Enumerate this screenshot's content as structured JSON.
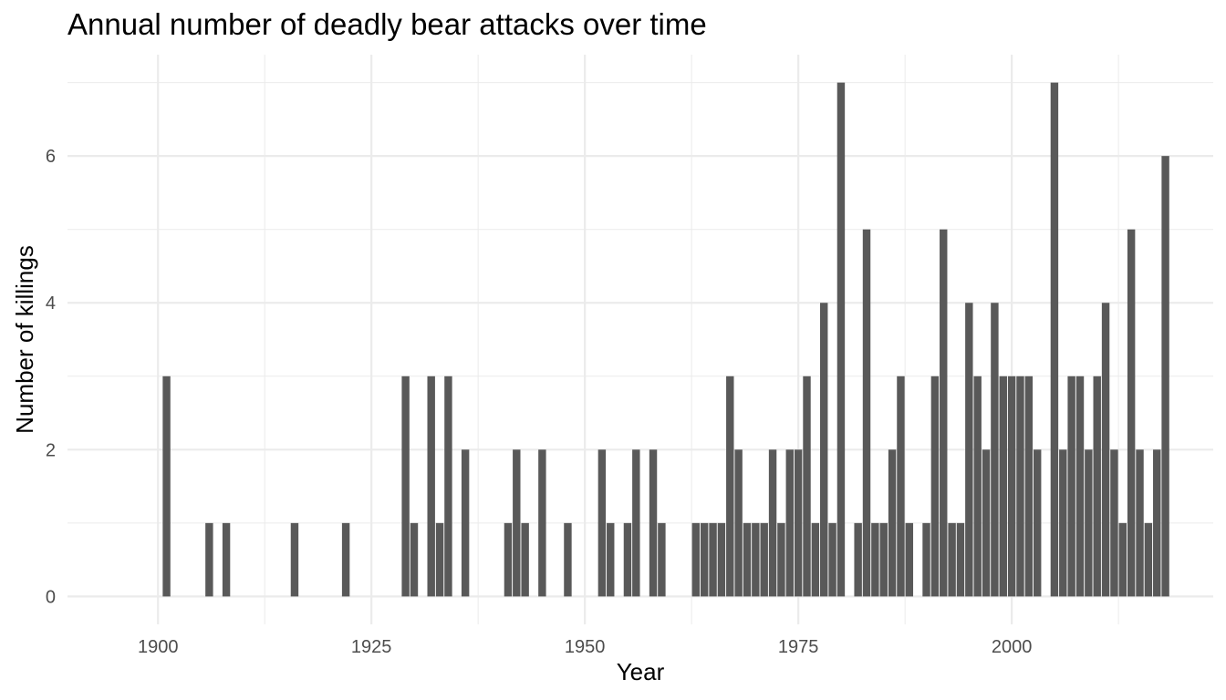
{
  "chart_data": {
    "type": "bar",
    "title": "Annual number of deadly bear attacks over time",
    "xlabel": "Year",
    "ylabel": "Number of killings",
    "xlim": [
      1889.4,
      2023.6
    ],
    "ylim": [
      -0.38,
      7.38
    ],
    "x_ticks": [
      1900,
      1925,
      1950,
      1975,
      2000
    ],
    "y_ticks": [
      0,
      2,
      4,
      6
    ],
    "grid": true,
    "bar_color": "#595959",
    "grid_color": "#ebebeb",
    "x": [
      1901,
      1906,
      1908,
      1916,
      1922,
      1929,
      1930,
      1932,
      1933,
      1934,
      1936,
      1941,
      1942,
      1943,
      1945,
      1948,
      1952,
      1953,
      1955,
      1956,
      1958,
      1959,
      1963,
      1964,
      1965,
      1966,
      1967,
      1968,
      1969,
      1970,
      1971,
      1972,
      1973,
      1974,
      1975,
      1976,
      1977,
      1978,
      1979,
      1980,
      1982,
      1983,
      1984,
      1985,
      1986,
      1987,
      1988,
      1990,
      1991,
      1992,
      1993,
      1994,
      1995,
      1996,
      1997,
      1998,
      1999,
      2000,
      2001,
      2002,
      2003,
      2005,
      2006,
      2007,
      2008,
      2009,
      2010,
      2011,
      2012,
      2013,
      2014,
      2015,
      2016,
      2017,
      2018
    ],
    "values": [
      3,
      1,
      1,
      1,
      1,
      3,
      1,
      3,
      1,
      3,
      2,
      1,
      2,
      1,
      2,
      1,
      2,
      1,
      1,
      2,
      2,
      1,
      1,
      1,
      1,
      1,
      3,
      2,
      1,
      1,
      1,
      2,
      1,
      2,
      2,
      3,
      1,
      4,
      1,
      7,
      1,
      5,
      1,
      1,
      2,
      3,
      1,
      1,
      3,
      5,
      1,
      1,
      4,
      3,
      2,
      4,
      3,
      3,
      3,
      3,
      2,
      7,
      2,
      3,
      3,
      2,
      3,
      4,
      2,
      1,
      5,
      2,
      1,
      2,
      6
    ]
  }
}
